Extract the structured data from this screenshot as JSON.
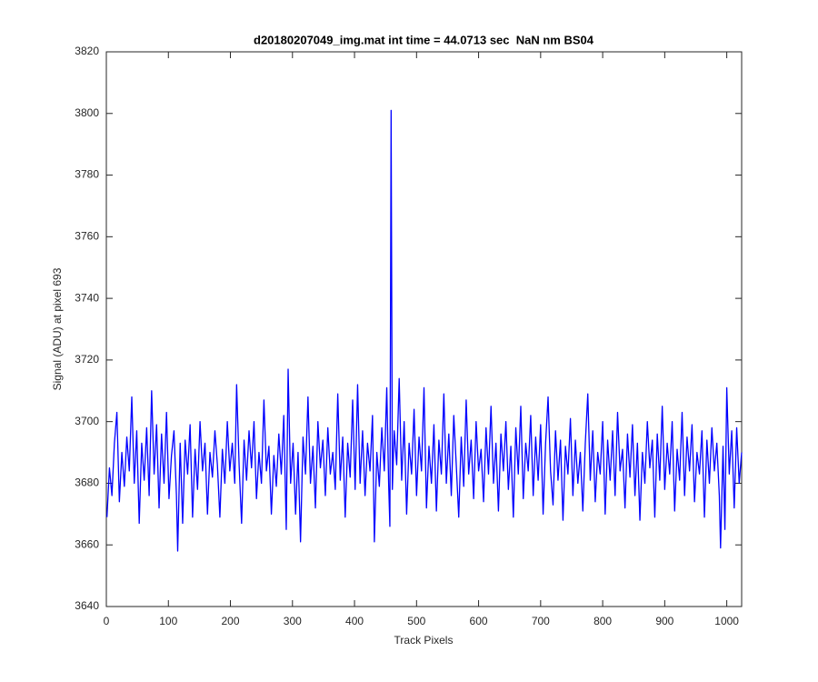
{
  "chart_data": {
    "type": "line",
    "title": "d20180207049_img.mat int time = 44.0713 sec  NaN nm BS04",
    "x_label": "Track Pixels",
    "y_label": "Signal (ADU) at pixel 693",
    "xlim": [
      0,
      1024
    ],
    "ylim": [
      3640,
      3820
    ],
    "xticks": [
      0,
      100,
      200,
      300,
      400,
      500,
      600,
      700,
      800,
      900,
      1000
    ],
    "yticks": [
      3640,
      3660,
      3680,
      3700,
      3720,
      3740,
      3760,
      3780,
      3800,
      3820
    ],
    "grid": false,
    "x": [
      1,
      5,
      9,
      13,
      17,
      21,
      25,
      29,
      33,
      37,
      41,
      45,
      49,
      53,
      57,
      61,
      65,
      69,
      73,
      77,
      81,
      85,
      89,
      93,
      97,
      101,
      105,
      109,
      113,
      115,
      119,
      123,
      127,
      131,
      135,
      139,
      143,
      147,
      151,
      155,
      159,
      163,
      167,
      171,
      175,
      179,
      183,
      187,
      191,
      195,
      199,
      203,
      207,
      210,
      214,
      218,
      222,
      226,
      230,
      234,
      238,
      242,
      246,
      250,
      254,
      258,
      262,
      266,
      270,
      274,
      278,
      282,
      286,
      290,
      293,
      297,
      301,
      305,
      309,
      313,
      317,
      321,
      325,
      329,
      333,
      337,
      341,
      345,
      349,
      353,
      357,
      361,
      365,
      369,
      373,
      377,
      381,
      385,
      389,
      393,
      397,
      401,
      405,
      409,
      413,
      417,
      421,
      425,
      429,
      432,
      436,
      440,
      444,
      448,
      452,
      455,
      457,
      459,
      461,
      464,
      468,
      472,
      476,
      480,
      484,
      488,
      492,
      496,
      500,
      504,
      508,
      512,
      516,
      520,
      524,
      528,
      532,
      536,
      540,
      544,
      548,
      552,
      556,
      560,
      564,
      568,
      572,
      576,
      580,
      584,
      588,
      592,
      596,
      600,
      604,
      608,
      612,
      616,
      620,
      624,
      628,
      632,
      636,
      640,
      644,
      648,
      652,
      656,
      660,
      664,
      668,
      672,
      676,
      680,
      684,
      688,
      692,
      696,
      700,
      704,
      708,
      712,
      716,
      720,
      724,
      728,
      732,
      736,
      740,
      744,
      748,
      752,
      756,
      760,
      764,
      768,
      772,
      776,
      780,
      784,
      788,
      792,
      796,
      800,
      804,
      808,
      812,
      816,
      820,
      824,
      828,
      832,
      836,
      840,
      844,
      848,
      852,
      856,
      860,
      864,
      868,
      872,
      876,
      880,
      884,
      888,
      892,
      896,
      900,
      904,
      908,
      912,
      916,
      920,
      924,
      928,
      932,
      936,
      940,
      944,
      948,
      952,
      956,
      960,
      964,
      968,
      972,
      976,
      980,
      984,
      988,
      990,
      994,
      997,
      1000,
      1004,
      1008,
      1012,
      1016,
      1020,
      1024
    ],
    "series": [
      {
        "color": "#0000ff",
        "values": [
          3669,
          3685,
          3676,
          3693,
          3703,
          3674,
          3690,
          3679,
          3695,
          3684,
          3708,
          3680,
          3697,
          3667,
          3693,
          3681,
          3698,
          3676,
          3710,
          3683,
          3699,
          3672,
          3696,
          3680,
          3703,
          3675,
          3689,
          3697,
          3676,
          3658,
          3693,
          3667,
          3694,
          3683,
          3699,
          3669,
          3691,
          3678,
          3700,
          3684,
          3693,
          3670,
          3690,
          3682,
          3697,
          3686,
          3669,
          3691,
          3680,
          3700,
          3684,
          3693,
          3680,
          3712,
          3686,
          3667,
          3694,
          3681,
          3697,
          3685,
          3700,
          3675,
          3690,
          3680,
          3707,
          3684,
          3692,
          3670,
          3689,
          3679,
          3696,
          3683,
          3702,
          3665,
          3717,
          3680,
          3693,
          3670,
          3690,
          3661,
          3695,
          3683,
          3708,
          3680,
          3692,
          3672,
          3700,
          3685,
          3694,
          3676,
          3698,
          3683,
          3690,
          3678,
          3709,
          3681,
          3695,
          3669,
          3693,
          3682,
          3707,
          3678,
          3712,
          3680,
          3697,
          3676,
          3693,
          3684,
          3702,
          3661,
          3690,
          3679,
          3698,
          3684,
          3711,
          3680,
          3666,
          3801,
          3678,
          3697,
          3686,
          3714,
          3681,
          3700,
          3670,
          3693,
          3683,
          3704,
          3676,
          3695,
          3684,
          3711,
          3672,
          3692,
          3680,
          3699,
          3671,
          3694,
          3683,
          3709,
          3680,
          3696,
          3676,
          3702,
          3686,
          3669,
          3695,
          3679,
          3707,
          3683,
          3694,
          3675,
          3700,
          3684,
          3691,
          3674,
          3698,
          3683,
          3705,
          3680,
          3693,
          3671,
          3696,
          3684,
          3700,
          3678,
          3692,
          3669,
          3698,
          3683,
          3705,
          3675,
          3693,
          3684,
          3702,
          3676,
          3695,
          3681,
          3699,
          3670,
          3693,
          3708,
          3684,
          3673,
          3697,
          3681,
          3694,
          3668,
          3692,
          3683,
          3701,
          3676,
          3694,
          3680,
          3690,
          3671,
          3693,
          3709,
          3681,
          3697,
          3674,
          3690,
          3683,
          3700,
          3670,
          3694,
          3681,
          3697,
          3676,
          3703,
          3684,
          3691,
          3672,
          3696,
          3682,
          3699,
          3676,
          3693,
          3668,
          3690,
          3680,
          3700,
          3685,
          3694,
          3669,
          3696,
          3681,
          3705,
          3678,
          3693,
          3683,
          3700,
          3671,
          3691,
          3681,
          3703,
          3676,
          3695,
          3684,
          3699,
          3674,
          3690,
          3683,
          3697,
          3669,
          3694,
          3680,
          3698,
          3684,
          3693,
          3676,
          3659,
          3692,
          3665,
          3711,
          3683,
          3697,
          3672,
          3698,
          3680,
          3690
        ]
      }
    ]
  }
}
